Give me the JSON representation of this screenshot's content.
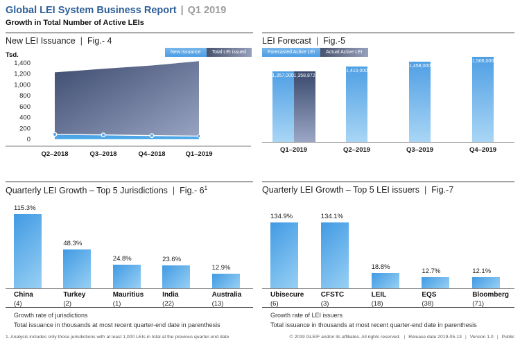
{
  "ui": {
    "pipe": "|"
  },
  "header": {
    "title": "Global LEI System Business Report",
    "period": "Q1 2019",
    "subtitle": "Growth in Total Number of Active LEIs"
  },
  "chart_data": [
    {
      "type": "area",
      "title": "New LEI Issuance",
      "figure": "Fig.- 4",
      "ylabel": "Tsd.",
      "categories": [
        "Q2–2018",
        "Q3–2018",
        "Q4–2018",
        "Q1–2019"
      ],
      "series": [
        {
          "name": "New issuance",
          "values": [
            90,
            80,
            68,
            58
          ]
        },
        {
          "name": "Total LEI issued",
          "values": [
            1230,
            1295,
            1355,
            1435
          ]
        }
      ],
      "yticks": [
        "1,400",
        "1,200",
        "1,000",
        "800",
        "600",
        "400",
        "200",
        "0"
      ],
      "ylim": [
        0,
        1400
      ],
      "legend_position": "top-right",
      "colors": {
        "new_issuance": "#45a0e6",
        "total_dark": "#3d4b6f",
        "total_light": "#9aa5c3"
      }
    },
    {
      "type": "bar",
      "title": "LEI Forecast",
      "figure": "Fig.-5",
      "categories": [
        "Q1–2019",
        "Q2–2019",
        "Q3–2019",
        "Q4–2019"
      ],
      "series": [
        {
          "name": "Forecasted Active LEI",
          "values": [
            1357000,
            1410000,
            1458000,
            1506000
          ],
          "labels": [
            "1,357,000",
            "1,410,000",
            "1,458,000",
            "1,506,000"
          ],
          "color": "#4f9fe4"
        },
        {
          "name": "Actual Active LEI",
          "values": [
            1358872
          ],
          "labels": [
            "1,358,872"
          ],
          "color": "#39486c"
        }
      ],
      "legend_position": "top-left"
    },
    {
      "type": "bar",
      "title": "Quarterly LEI Growth – Top 5 Jurisdictions",
      "figure": "Fig.- 6",
      "figure_superscript": "1",
      "categories": [
        "China",
        "Turkey",
        "Mauritius",
        "India",
        "Australia"
      ],
      "counts": [
        "(4)",
        "(2)",
        "(1)",
        "(22)",
        "(13)"
      ],
      "values": [
        115.3,
        48.3,
        24.8,
        23.6,
        12.9
      ],
      "value_labels": [
        "115.3%",
        "48.3%",
        "24.8%",
        "23.6%",
        "12.9%"
      ],
      "bar_color": "#419ae3",
      "notes": [
        "Growth rate of jurisdictions",
        "Total issuance in thousands at most recent quarter-end date in parenthesis"
      ]
    },
    {
      "type": "bar",
      "title": "Quarterly LEI Growth – Top 5 LEI issuers",
      "figure": "Fig.-7",
      "categories": [
        "Ubisecure",
        "CFSTC",
        "LEIL",
        "EQS",
        "Bloomberg"
      ],
      "counts": [
        "(6)",
        "(3)",
        "(18)",
        "(38)",
        "(71)"
      ],
      "values": [
        134.9,
        134.1,
        18.8,
        12.7,
        12.1
      ],
      "value_labels": [
        "134.9%",
        "134.1%",
        "18.8%",
        "12.7%",
        "12.1%"
      ],
      "bar_color": "#419ae3",
      "notes": [
        "Growth rate of LEI issuers",
        "Total issuance in thousands at most recent quarter-end date in parenthesis"
      ]
    }
  ],
  "footer": {
    "footnote": "1. Analysis includes only those jurisdictions with at least 1,000 LEIs in total at the previous quarter-end date",
    "copyright": "© 2019 GLEIF and/or its affiliates. All rights reserved.",
    "release": "Release date 2019-05-13",
    "version": "Version 1.0",
    "visibility": "Public"
  }
}
